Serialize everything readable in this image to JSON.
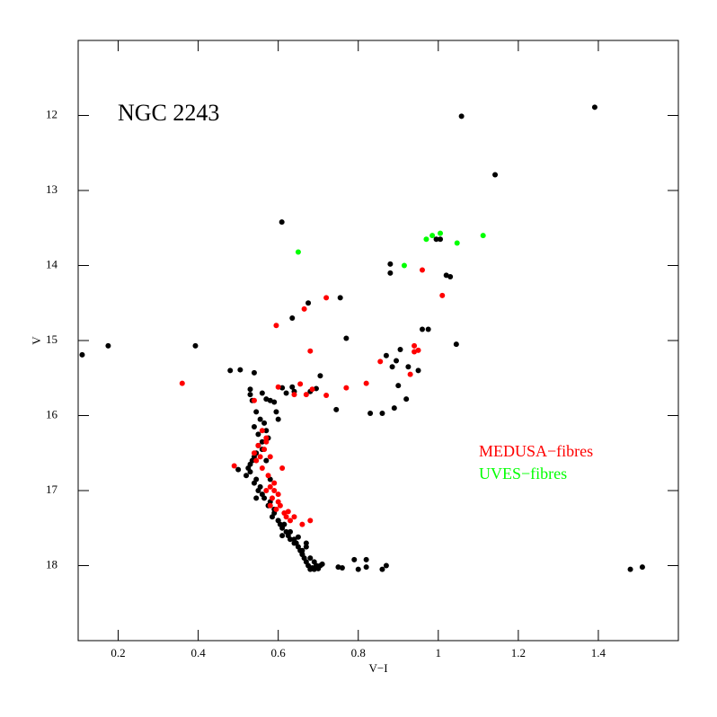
{
  "chart_data": {
    "type": "scatter",
    "title": "NGC 2243",
    "x_label": "V−I",
    "y_label": "V",
    "xlim": [
      0.1,
      1.6
    ],
    "ylim": [
      19,
      11
    ],
    "xticks": [
      0.2,
      0.4,
      0.6,
      0.8,
      1,
      1.2,
      1.4
    ],
    "yticks": [
      12,
      13,
      14,
      15,
      16,
      17,
      18
    ],
    "series": [
      {
        "color": "#000000",
        "x": [
          0.11,
          0.175,
          0.393,
          1.391,
          1.058,
          1.142,
          0.609,
          0.88,
          0.88,
          1.02,
          1.03,
          0.675,
          0.755,
          0.635,
          0.77,
          0.96,
          0.975,
          1.045,
          0.905,
          0.87,
          0.895,
          0.885,
          0.925,
          0.95,
          0.9,
          0.92,
          0.89,
          0.83,
          0.86,
          0.745,
          0.705,
          0.695,
          0.68,
          0.635,
          0.64,
          0.61,
          0.62,
          0.48,
          0.505,
          0.54,
          0.995,
          1.005,
          1.48,
          1.51,
          0.53,
          0.53,
          0.535,
          0.56,
          0.57,
          0.58,
          0.59,
          0.595,
          0.6,
          0.545,
          0.555,
          0.565,
          0.57,
          0.575,
          0.56,
          0.55,
          0.545,
          0.54,
          0.535,
          0.53,
          0.525,
          0.5,
          0.52,
          0.54,
          0.55,
          0.545,
          0.555,
          0.56,
          0.565,
          0.575,
          0.58,
          0.59,
          0.585,
          0.6,
          0.605,
          0.61,
          0.62,
          0.615,
          0.625,
          0.63,
          0.64,
          0.645,
          0.65,
          0.655,
          0.66,
          0.665,
          0.67,
          0.675,
          0.68,
          0.685,
          0.69,
          0.695,
          0.7,
          0.705,
          0.71,
          0.67,
          0.66,
          0.68,
          0.69,
          0.75,
          0.76,
          0.79,
          0.8,
          0.82,
          0.82,
          0.86,
          0.87,
          0.54,
          0.55,
          0.56,
          0.53,
          0.545,
          0.57,
          0.58,
          0.59,
          0.6,
          0.61,
          0.63,
          0.64,
          0.65,
          0.66,
          0.67
        ],
        "y": [
          15.19,
          15.07,
          15.07,
          11.89,
          12.01,
          12.79,
          13.42,
          13.98,
          14.1,
          14.13,
          14.15,
          14.5,
          14.43,
          14.7,
          14.97,
          14.85,
          14.85,
          15.05,
          15.12,
          15.2,
          15.27,
          15.35,
          15.35,
          15.4,
          15.6,
          15.78,
          15.9,
          15.97,
          15.97,
          15.92,
          15.47,
          15.64,
          15.68,
          15.62,
          15.68,
          15.63,
          15.7,
          15.4,
          15.39,
          15.43,
          13.65,
          13.65,
          18.05,
          18.02,
          15.65,
          15.72,
          15.8,
          15.7,
          15.78,
          15.8,
          15.82,
          15.95,
          16.05,
          15.95,
          16.05,
          16.1,
          16.2,
          16.3,
          16.35,
          16.4,
          16.5,
          16.55,
          16.6,
          16.65,
          16.7,
          16.72,
          16.8,
          16.9,
          17.0,
          16.85,
          16.95,
          17.05,
          17.1,
          17.2,
          17.15,
          17.3,
          17.35,
          17.4,
          17.45,
          17.5,
          17.55,
          17.45,
          17.6,
          17.55,
          17.65,
          17.7,
          17.75,
          17.8,
          17.85,
          17.9,
          17.95,
          18.0,
          18.05,
          18.03,
          18.05,
          18.0,
          18.04,
          18.0,
          17.98,
          17.75,
          17.85,
          17.9,
          17.95,
          18.02,
          18.03,
          17.92,
          18.05,
          17.92,
          18.02,
          18.05,
          18.0,
          16.15,
          16.25,
          16.45,
          16.75,
          17.1,
          16.6,
          16.85,
          17.25,
          17.4,
          17.6,
          17.65,
          17.7,
          17.62,
          17.8,
          17.7
        ]
      },
      {
        "name": "MEDUSA−fibres",
        "color": "#ff0000",
        "x": [
          0.36,
          0.595,
          0.665,
          0.72,
          0.96,
          1.01,
          0.94,
          0.94,
          0.95,
          0.855,
          0.93,
          0.68,
          0.6,
          0.655,
          0.67,
          0.685,
          0.72,
          0.77,
          0.82,
          0.64,
          0.54,
          0.49,
          0.68,
          0.63,
          0.66,
          0.56,
          0.57,
          0.55,
          0.565,
          0.58,
          0.545,
          0.56,
          0.575,
          0.59,
          0.57,
          0.585,
          0.6,
          0.595,
          0.615,
          0.62,
          0.605,
          0.625,
          0.54,
          0.58,
          0.6,
          0.61,
          0.57,
          0.555,
          0.59,
          0.58,
          0.64
        ],
        "y": [
          15.57,
          14.8,
          14.58,
          14.43,
          14.06,
          14.4,
          15.07,
          15.15,
          15.13,
          15.28,
          15.45,
          15.14,
          15.62,
          15.58,
          15.72,
          15.65,
          15.73,
          15.63,
          15.57,
          15.72,
          15.8,
          16.67,
          17.4,
          17.4,
          17.45,
          16.2,
          16.3,
          16.4,
          16.45,
          16.55,
          16.6,
          16.7,
          16.8,
          16.9,
          17.0,
          17.1,
          17.15,
          17.25,
          17.3,
          17.35,
          17.2,
          17.28,
          16.5,
          16.95,
          17.05,
          16.7,
          16.35,
          16.55,
          17.0,
          17.2,
          17.35
        ]
      },
      {
        "name": "UVES−fibres",
        "color": "#00ff00",
        "x": [
          0.65,
          0.915,
          0.97,
          0.985,
          1.005,
          1.047,
          1.112
        ],
        "y": [
          13.82,
          14.0,
          13.65,
          13.6,
          13.57,
          13.7,
          13.6
        ]
      }
    ]
  }
}
